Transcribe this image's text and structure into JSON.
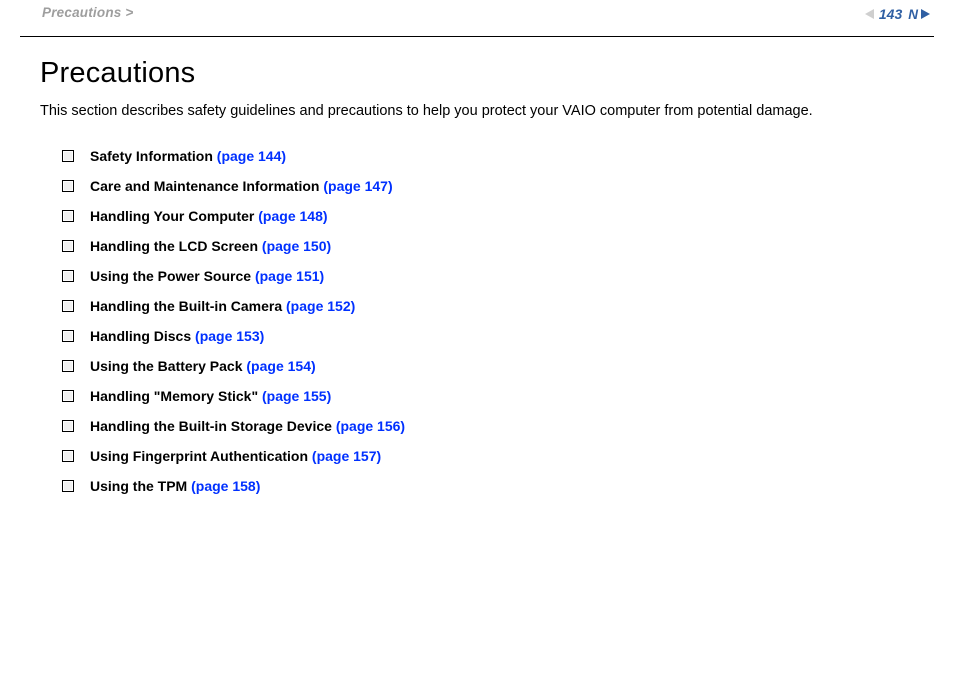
{
  "header": {
    "breadcrumb": "Precautions >",
    "page_number": "143",
    "n_label": "N"
  },
  "content": {
    "title": "Precautions",
    "intro": "This section describes safety guidelines and precautions to help you protect your VAIO computer from potential damage.",
    "items": [
      {
        "label": "Safety Information ",
        "page": "(page 144)"
      },
      {
        "label": "Care and Maintenance Information ",
        "page": "(page 147)"
      },
      {
        "label": "Handling Your Computer ",
        "page": "(page 148)"
      },
      {
        "label": "Handling the LCD Screen ",
        "page": "(page 150)"
      },
      {
        "label": "Using the Power Source ",
        "page": "(page 151)"
      },
      {
        "label": "Handling the Built-in Camera ",
        "page": "(page 152)"
      },
      {
        "label": "Handling Discs ",
        "page": "(page 153)"
      },
      {
        "label": "Using the Battery Pack ",
        "page": "(page 154)"
      },
      {
        "label": "Handling \"Memory Stick\" ",
        "page": "(page 155)"
      },
      {
        "label": "Handling the Built-in Storage Device ",
        "page": "(page 156)"
      },
      {
        "label": "Using Fingerprint Authentication ",
        "page": "(page 157)"
      },
      {
        "label": "Using the TPM ",
        "page": "(page 158)"
      }
    ]
  },
  "colors": {
    "breadcrumb": "#9e9e9e",
    "link": "#0030ff",
    "pagenum": "#2f5fa3",
    "tri_inactive": "#cfcfcf",
    "tri_active": "#2f5fa3",
    "rule": "#000000",
    "text": "#000000",
    "background": "#ffffff"
  }
}
